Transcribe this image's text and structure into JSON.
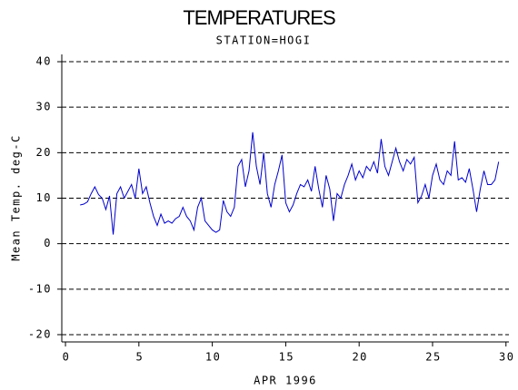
{
  "chart_data": {
    "type": "line",
    "title": "TEMPERATURES",
    "subtitle": "STATION=HOGI",
    "x_label": "APR 1996",
    "y_label": "Mean Temp. deg-C",
    "color": "#0000cc",
    "grid": true,
    "xlim": [
      -0.25,
      30.2
    ],
    "xticks": [
      0,
      5,
      10,
      15,
      20,
      25,
      30
    ],
    "ylim": [
      -21.6,
      41.6
    ],
    "yticks": [
      40,
      30,
      20,
      10,
      0,
      -10,
      -20
    ],
    "x": [
      1,
      1.25,
      1.5,
      1.75,
      2,
      2.25,
      2.5,
      2.75,
      3,
      3.25,
      3.5,
      3.75,
      4,
      4.25,
      4.5,
      4.75,
      5,
      5.25,
      5.5,
      5.75,
      6,
      6.25,
      6.5,
      6.75,
      7,
      7.25,
      7.5,
      7.75,
      8,
      8.25,
      8.5,
      8.75,
      9,
      9.25,
      9.5,
      9.75,
      10,
      10.25,
      10.5,
      10.75,
      11,
      11.25,
      11.5,
      11.75,
      12,
      12.25,
      12.5,
      12.75,
      13,
      13.25,
      13.5,
      13.75,
      14,
      14.25,
      14.5,
      14.75,
      15,
      15.25,
      15.5,
      15.75,
      16,
      16.25,
      16.5,
      16.75,
      17,
      17.25,
      17.5,
      17.75,
      18,
      18.25,
      18.5,
      18.75,
      19,
      19.25,
      19.5,
      19.75,
      20,
      20.25,
      20.5,
      20.75,
      21,
      21.25,
      21.5,
      21.75,
      22,
      22.25,
      22.5,
      22.75,
      23,
      23.25,
      23.5,
      23.75,
      24,
      24.25,
      24.5,
      24.75,
      25,
      25.25,
      25.5,
      25.75,
      26,
      26.25,
      26.5,
      26.75,
      27,
      27.25,
      27.5,
      27.75,
      28,
      28.25,
      28.5,
      28.75,
      29,
      29.25,
      29.5
    ],
    "values": [
      8.5,
      8.7,
      9.2,
      11,
      12.5,
      10.8,
      10,
      7.5,
      10.5,
      2,
      11,
      12.5,
      10,
      11.5,
      13,
      10,
      16.5,
      11,
      12.5,
      9,
      6,
      4,
      6.5,
      4.5,
      5,
      4.5,
      5.5,
      6,
      8,
      6,
      5,
      3,
      8,
      10,
      5,
      4,
      3,
      2.5,
      3,
      9.5,
      7,
      6,
      8,
      17,
      18.5,
      12.5,
      16,
      24.5,
      17,
      13,
      20,
      11,
      8,
      13,
      16,
      19.5,
      9,
      7,
      8.5,
      11,
      13,
      12.5,
      14,
      11.5,
      17,
      12,
      8,
      15,
      12,
      5,
      11,
      10,
      13,
      15,
      17.5,
      14,
      16,
      14.5,
      17,
      16,
      18,
      15.5,
      23,
      17,
      15,
      18,
      21,
      18,
      16,
      18.5,
      17.5,
      19,
      9,
      10.5,
      13,
      10,
      15,
      17.5,
      14,
      13,
      16,
      15,
      22.5,
      14,
      14.5,
      13.5,
      16.5,
      12,
      7,
      12,
      16,
      13,
      13,
      14,
      18
    ]
  }
}
